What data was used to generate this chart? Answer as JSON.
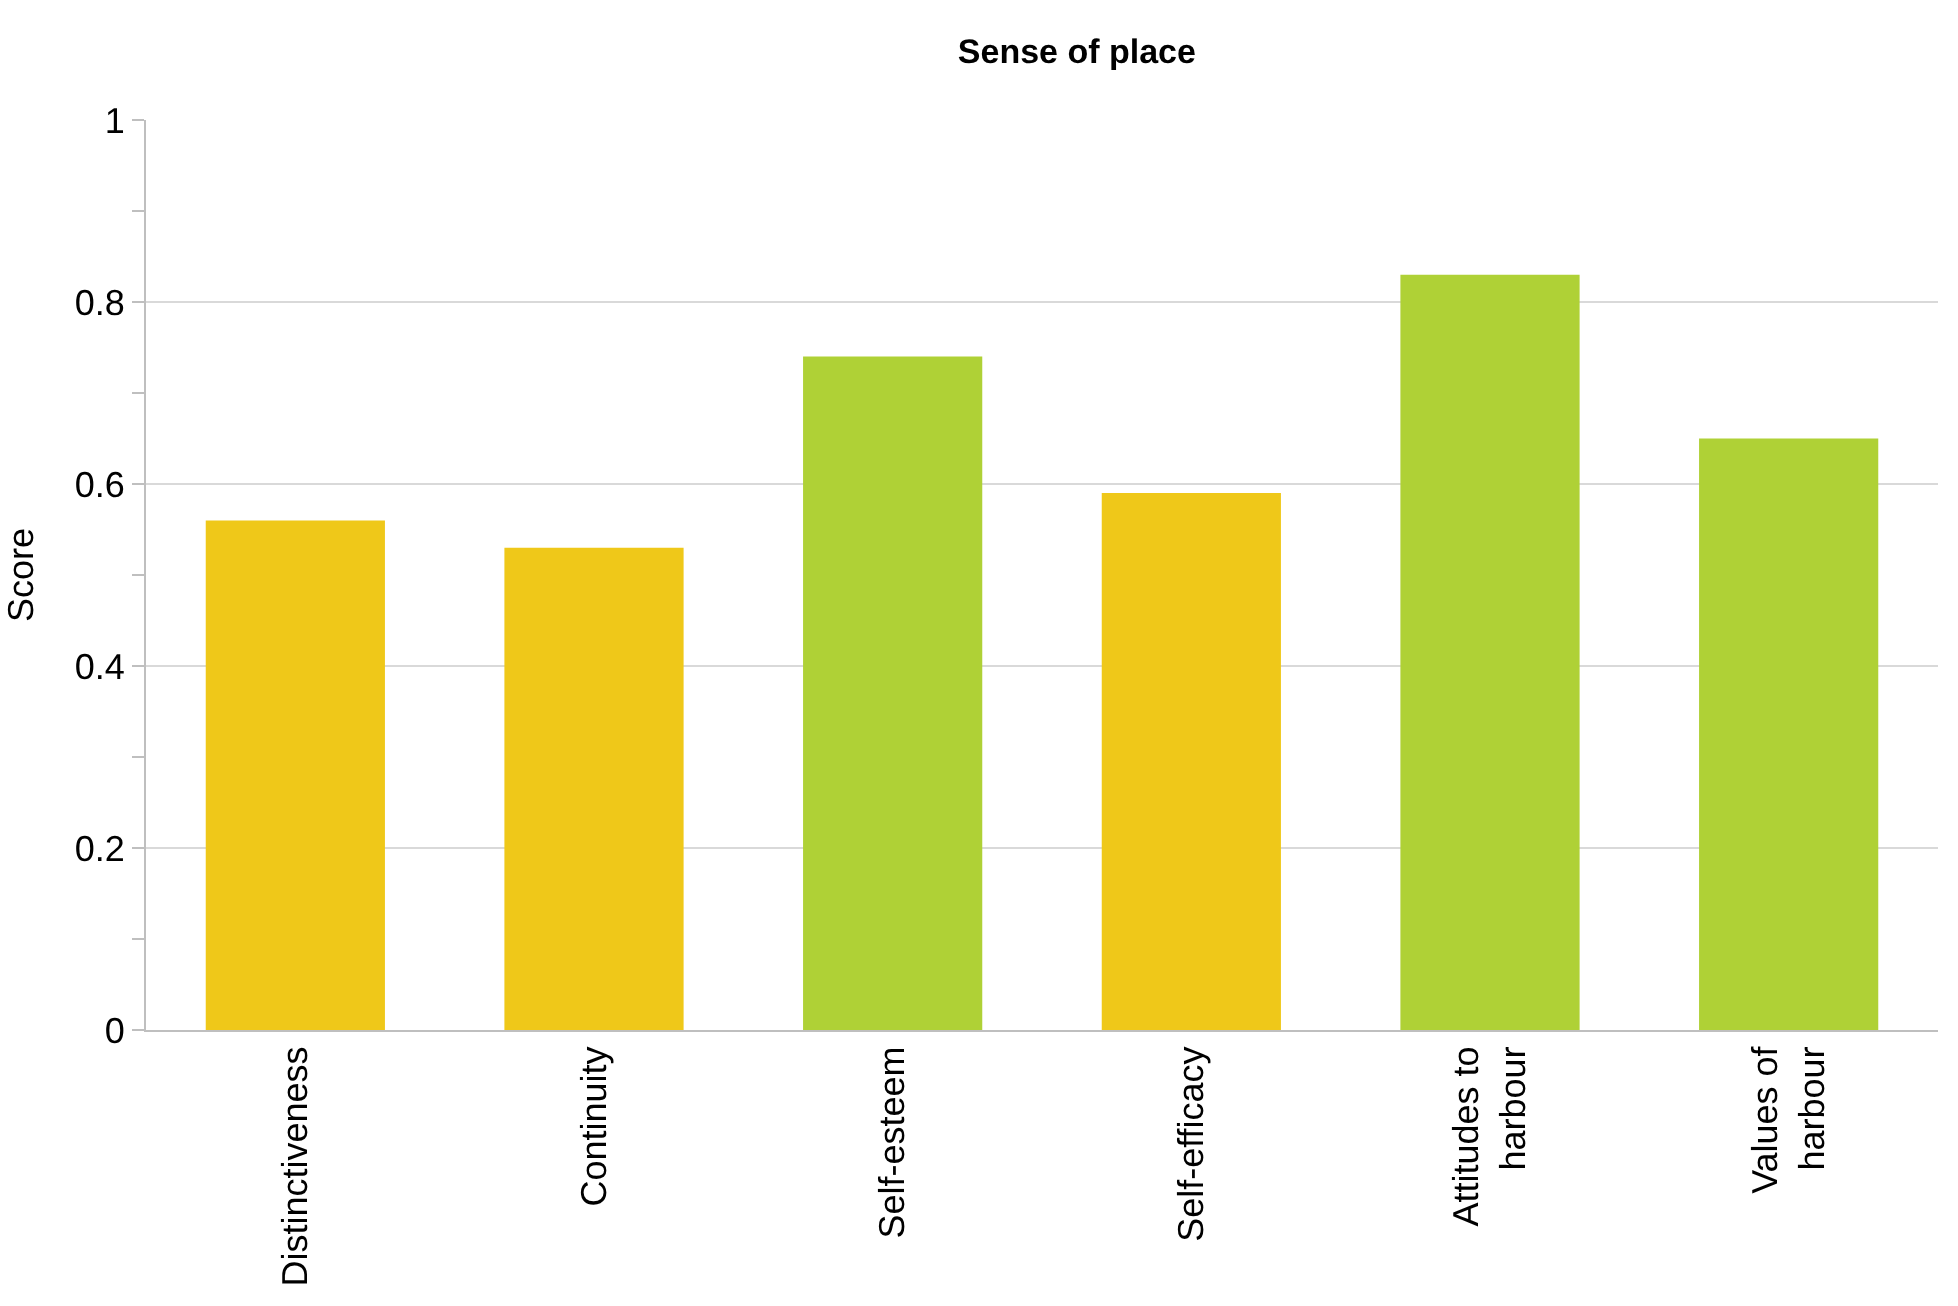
{
  "chart_data": {
    "type": "bar",
    "title": "Sense of place",
    "ylabel": "Score",
    "categories": [
      "Distinctiveness",
      "Continuity",
      "Self-esteem",
      "Self-efficacy",
      "Attitudes to\nharbour",
      "Values of\nharbour"
    ],
    "values": [
      0.56,
      0.53,
      0.74,
      0.59,
      0.83,
      0.65
    ],
    "colors": [
      "#efc819",
      "#efc819",
      "#afd136",
      "#efc819",
      "#afd136",
      "#afd136"
    ],
    "ylim": [
      0,
      1
    ],
    "yticks": [
      0,
      {
        "value": 0.1,
        "label": null
      },
      0.2,
      {
        "value": 0.3,
        "label": null
      },
      0.4,
      {
        "value": 0.5,
        "label": null
      },
      0.6,
      {
        "value": 0.7,
        "label": null
      },
      0.8,
      {
        "value": 0.9,
        "label": null
      },
      1
    ],
    "grid": "y"
  }
}
